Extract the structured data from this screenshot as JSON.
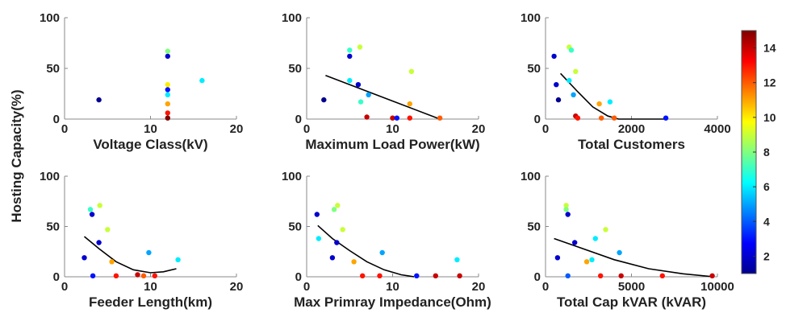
{
  "figure": {
    "ylabel": "Hosting Capacity(%)"
  },
  "colorbar": {
    "ticks": [
      2,
      4,
      6,
      8,
      10,
      12,
      14
    ],
    "range": [
      1,
      15
    ]
  },
  "chart_data": [
    {
      "type": "scatter",
      "xlabel": "Voltage Class(kV)",
      "xlim": [
        0,
        20
      ],
      "ylim": [
        0,
        100
      ],
      "xticks": [
        0,
        10,
        20
      ],
      "yticks": [
        0,
        50,
        100
      ],
      "points": [
        {
          "x": 4,
          "y": 19,
          "c": 1
        },
        {
          "x": 12,
          "y": 67,
          "c": 8
        },
        {
          "x": 12,
          "y": 62,
          "c": 2
        },
        {
          "x": 12,
          "y": 34,
          "c": 10
        },
        {
          "x": 12,
          "y": 29,
          "c": 3
        },
        {
          "x": 12,
          "y": 24,
          "c": 6
        },
        {
          "x": 12,
          "y": 15,
          "c": 11
        },
        {
          "x": 12,
          "y": 6,
          "c": 13
        },
        {
          "x": 12,
          "y": 1,
          "c": 15
        },
        {
          "x": 16,
          "y": 38,
          "c": 6
        }
      ],
      "trend": []
    },
    {
      "type": "scatter",
      "xlabel": "Maximum Load Power(kW)",
      "xlim": [
        0,
        20
      ],
      "ylim": [
        0,
        100
      ],
      "xticks": [
        0,
        10,
        20
      ],
      "yticks": [
        0,
        50,
        100
      ],
      "points": [
        {
          "x": 2,
          "y": 19,
          "c": 1
        },
        {
          "x": 5,
          "y": 68,
          "c": 7
        },
        {
          "x": 5,
          "y": 62,
          "c": 2
        },
        {
          "x": 6.2,
          "y": 71,
          "c": 9
        },
        {
          "x": 5,
          "y": 38,
          "c": 6
        },
        {
          "x": 6,
          "y": 34,
          "c": 2
        },
        {
          "x": 7.2,
          "y": 24,
          "c": 5
        },
        {
          "x": 6.3,
          "y": 17,
          "c": 7
        },
        {
          "x": 12.2,
          "y": 47,
          "c": 9
        },
        {
          "x": 12,
          "y": 15,
          "c": 11
        },
        {
          "x": 7,
          "y": 2,
          "c": 14
        },
        {
          "x": 10,
          "y": 1,
          "c": 14
        },
        {
          "x": 10.5,
          "y": 1,
          "c": 3
        },
        {
          "x": 12,
          "y": 1,
          "c": 13
        },
        {
          "x": 15.5,
          "y": 1,
          "c": 12
        }
      ],
      "trend": [
        [
          2.2,
          43
        ],
        [
          15.5,
          0
        ]
      ]
    },
    {
      "type": "scatter",
      "xlabel": "Total Customers",
      "xlim": [
        0,
        4000
      ],
      "ylim": [
        0,
        100
      ],
      "xticks": [
        0,
        2000,
        4000
      ],
      "yticks": [
        0,
        50,
        100
      ],
      "points": [
        {
          "x": 200,
          "y": 62,
          "c": 2
        },
        {
          "x": 250,
          "y": 34,
          "c": 2
        },
        {
          "x": 300,
          "y": 19,
          "c": 1
        },
        {
          "x": 550,
          "y": 71,
          "c": 9
        },
        {
          "x": 600,
          "y": 68,
          "c": 7
        },
        {
          "x": 700,
          "y": 47,
          "c": 9
        },
        {
          "x": 550,
          "y": 38,
          "c": 6
        },
        {
          "x": 650,
          "y": 24,
          "c": 5
        },
        {
          "x": 700,
          "y": 3,
          "c": 14
        },
        {
          "x": 750,
          "y": 1,
          "c": 13
        },
        {
          "x": 1250,
          "y": 15,
          "c": 11
        },
        {
          "x": 1300,
          "y": 1,
          "c": 12
        },
        {
          "x": 1500,
          "y": 17,
          "c": 6
        },
        {
          "x": 1600,
          "y": 1,
          "c": 12
        },
        {
          "x": 2800,
          "y": 1,
          "c": 3
        }
      ],
      "trend": [
        [
          350,
          45
        ],
        [
          750,
          27
        ],
        [
          1100,
          12
        ],
        [
          1450,
          3
        ],
        [
          1700,
          0
        ],
        [
          2800,
          0
        ]
      ]
    },
    {
      "type": "scatter",
      "xlabel": "Feeder Length(km)",
      "xlim": [
        0,
        20
      ],
      "ylim": [
        0,
        100
      ],
      "xticks": [
        0,
        10,
        20
      ],
      "yticks": [
        0,
        50,
        100
      ],
      "points": [
        {
          "x": 2.3,
          "y": 19,
          "c": 2
        },
        {
          "x": 3,
          "y": 67,
          "c": 7
        },
        {
          "x": 3.2,
          "y": 62,
          "c": 2
        },
        {
          "x": 4.1,
          "y": 71,
          "c": 9
        },
        {
          "x": 5,
          "y": 47,
          "c": 9
        },
        {
          "x": 4,
          "y": 34,
          "c": 2
        },
        {
          "x": 3.3,
          "y": 1,
          "c": 3
        },
        {
          "x": 5.5,
          "y": 15,
          "c": 11
        },
        {
          "x": 6,
          "y": 1,
          "c": 13
        },
        {
          "x": 8.5,
          "y": 2,
          "c": 14
        },
        {
          "x": 9.2,
          "y": 1,
          "c": 12
        },
        {
          "x": 10.5,
          "y": 1,
          "c": 13
        },
        {
          "x": 9.8,
          "y": 24,
          "c": 5
        },
        {
          "x": 13.2,
          "y": 17,
          "c": 6
        }
      ],
      "trend": [
        [
          2.3,
          40
        ],
        [
          4,
          28
        ],
        [
          6,
          15
        ],
        [
          8,
          7
        ],
        [
          10,
          4
        ],
        [
          11.5,
          5
        ],
        [
          13,
          8
        ]
      ]
    },
    {
      "type": "scatter",
      "xlabel": "Max Primray Impedance(Ohm)",
      "xlim": [
        0,
        20
      ],
      "ylim": [
        0,
        100
      ],
      "xticks": [
        0,
        10,
        20
      ],
      "yticks": [
        0,
        50,
        100
      ],
      "points": [
        {
          "x": 1.2,
          "y": 62,
          "c": 2
        },
        {
          "x": 1.4,
          "y": 38,
          "c": 6
        },
        {
          "x": 3.2,
          "y": 67,
          "c": 8
        },
        {
          "x": 3.6,
          "y": 71,
          "c": 9
        },
        {
          "x": 4.2,
          "y": 47,
          "c": 9
        },
        {
          "x": 3.5,
          "y": 34,
          "c": 2
        },
        {
          "x": 3,
          "y": 19,
          "c": 2
        },
        {
          "x": 5.5,
          "y": 15,
          "c": 11
        },
        {
          "x": 6.5,
          "y": 1,
          "c": 13
        },
        {
          "x": 8.5,
          "y": 1,
          "c": 13
        },
        {
          "x": 8.8,
          "y": 24,
          "c": 5
        },
        {
          "x": 12.8,
          "y": 1,
          "c": 3
        },
        {
          "x": 15,
          "y": 1,
          "c": 14
        },
        {
          "x": 17.5,
          "y": 17,
          "c": 6
        },
        {
          "x": 17.8,
          "y": 1,
          "c": 14
        }
      ],
      "trend": [
        [
          1.3,
          51
        ],
        [
          3,
          38
        ],
        [
          5,
          26
        ],
        [
          7,
          15
        ],
        [
          9,
          7
        ],
        [
          11,
          2
        ],
        [
          12.5,
          0
        ]
      ]
    },
    {
      "type": "scatter",
      "xlabel": "Total Cap kVAR (kVAR)",
      "xlim": [
        0,
        10000
      ],
      "ylim": [
        0,
        100
      ],
      "xticks": [
        0,
        5000,
        10000
      ],
      "yticks": [
        0,
        50,
        100
      ],
      "points": [
        {
          "x": 700,
          "y": 19,
          "c": 2
        },
        {
          "x": 1200,
          "y": 71,
          "c": 9
        },
        {
          "x": 1200,
          "y": 67,
          "c": 8
        },
        {
          "x": 1300,
          "y": 62,
          "c": 2
        },
        {
          "x": 1300,
          "y": 1,
          "c": 4
        },
        {
          "x": 1700,
          "y": 34,
          "c": 2
        },
        {
          "x": 2700,
          "y": 17,
          "c": 6
        },
        {
          "x": 2900,
          "y": 38,
          "c": 6
        },
        {
          "x": 2400,
          "y": 15,
          "c": 11
        },
        {
          "x": 3200,
          "y": 1,
          "c": 13
        },
        {
          "x": 3500,
          "y": 47,
          "c": 9
        },
        {
          "x": 4300,
          "y": 24,
          "c": 5
        },
        {
          "x": 4400,
          "y": 1,
          "c": 14
        },
        {
          "x": 6800,
          "y": 1,
          "c": 13
        },
        {
          "x": 9700,
          "y": 1,
          "c": 14
        }
      ],
      "trend": [
        [
          500,
          38
        ],
        [
          2000,
          29
        ],
        [
          4000,
          17
        ],
        [
          6000,
          8
        ],
        [
          8000,
          3
        ],
        [
          9800,
          0
        ]
      ]
    }
  ]
}
